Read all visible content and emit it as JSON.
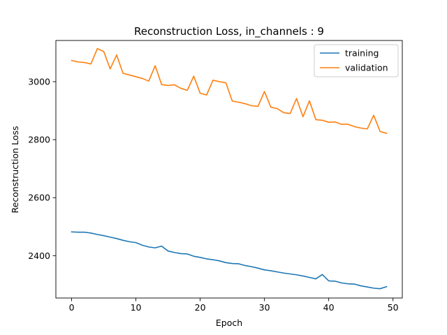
{
  "chart_data": {
    "type": "line",
    "title": "Reconstruction Loss, in_channels : 9",
    "xlabel": "Epoch",
    "ylabel": "Reconstruction Loss",
    "xlim": [
      -2.45,
      51.45
    ],
    "ylim": [
      2254,
      3142
    ],
    "xticks": [
      0,
      10,
      20,
      30,
      40,
      50
    ],
    "yticks": [
      2400,
      2600,
      2800,
      3000
    ],
    "grid": false,
    "legend_position": "upper right",
    "x": [
      0,
      1,
      2,
      3,
      4,
      5,
      6,
      7,
      8,
      9,
      10,
      11,
      12,
      13,
      14,
      15,
      16,
      17,
      18,
      19,
      20,
      21,
      22,
      23,
      24,
      25,
      26,
      27,
      28,
      29,
      30,
      31,
      32,
      33,
      34,
      35,
      36,
      37,
      38,
      39,
      40,
      41,
      42,
      43,
      44,
      45,
      46,
      47,
      48,
      49
    ],
    "series": [
      {
        "name": "training",
        "color": "#1f77b4",
        "values": [
          2482,
          2481,
          2481,
          2478,
          2473,
          2469,
          2464,
          2459,
          2453,
          2448,
          2445,
          2436,
          2430,
          2427,
          2433,
          2416,
          2411,
          2407,
          2406,
          2398,
          2394,
          2389,
          2386,
          2382,
          2376,
          2373,
          2372,
          2366,
          2362,
          2357,
          2351,
          2348,
          2344,
          2340,
          2337,
          2334,
          2330,
          2325,
          2320,
          2335,
          2313,
          2312,
          2306,
          2303,
          2302,
          2296,
          2292,
          2288,
          2286,
          2293
        ]
      },
      {
        "name": "validation",
        "color": "#ff7f0e",
        "values": [
          3073,
          3068,
          3066,
          3061,
          3114,
          3104,
          3044,
          3092,
          3029,
          3023,
          3017,
          3011,
          3002,
          3055,
          2990,
          2987,
          2989,
          2977,
          2970,
          3019,
          2960,
          2954,
          3005,
          3000,
          2996,
          2933,
          2929,
          2924,
          2917,
          2915,
          2966,
          2912,
          2907,
          2893,
          2890,
          2942,
          2879,
          2934,
          2869,
          2867,
          2860,
          2861,
          2853,
          2853,
          2845,
          2840,
          2837,
          2884,
          2828,
          2822
        ]
      }
    ]
  }
}
